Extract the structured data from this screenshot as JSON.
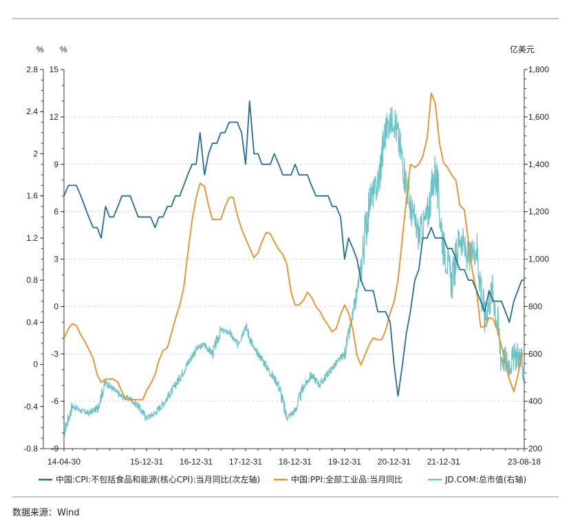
{
  "source_label": "数据来源：Wind",
  "chart_data": {
    "type": "line",
    "axes": {
      "left_outer": {
        "unit": "%",
        "min": -0.8,
        "max": 2.8,
        "ticks": [
          "2.8",
          "2.4",
          "2",
          "1.6",
          "1.2",
          "0.8",
          "0.4",
          "0",
          "-0.4",
          "-0.8"
        ]
      },
      "left_inner": {
        "unit": "%",
        "min": -9,
        "max": 15,
        "ticks": [
          "15",
          "12",
          "9",
          "6",
          "3",
          "0",
          "-3",
          "-6",
          "-9"
        ]
      },
      "right": {
        "unit": "亿美元",
        "min": 200,
        "max": 1800,
        "ticks": [
          "1,800",
          "1,600",
          "1,400",
          "1,200",
          "1,000",
          "800",
          "600",
          "400",
          "200"
        ]
      }
    },
    "x_ticks": [
      "14-04-30",
      "15-12-31",
      "16-12-31",
      "17-12-31",
      "18-12-31",
      "19-12-31",
      "20-12-31",
      "21-12-31",
      "23-08-18"
    ],
    "x_range_years": [
      2014.33,
      2023.63
    ],
    "x_tick_years": [
      2014.33,
      2016.0,
      2017.0,
      2018.0,
      2019.0,
      2020.0,
      2021.0,
      2022.0,
      2023.63
    ],
    "grid": "horizontal-dashed",
    "legend_position": "bottom",
    "colors": {
      "cpi": "#1f6e96",
      "ppi": "#f28a1f",
      "jd": "#6cc3c6"
    },
    "series": [
      {
        "name": "中国:CPI:不包括食品和能源(核心CPI):当月同比(次左轴)",
        "axis": "left_outer",
        "x": [
          2014.33,
          2014.42,
          2014.5,
          2014.58,
          2014.67,
          2014.75,
          2014.83,
          2014.92,
          2015.0,
          2015.08,
          2015.17,
          2015.25,
          2015.33,
          2015.42,
          2015.5,
          2015.58,
          2015.67,
          2015.75,
          2015.83,
          2015.92,
          2016.0,
          2016.08,
          2016.17,
          2016.25,
          2016.33,
          2016.42,
          2016.5,
          2016.58,
          2016.67,
          2016.75,
          2016.83,
          2016.92,
          2017.0,
          2017.08,
          2017.17,
          2017.25,
          2017.33,
          2017.42,
          2017.5,
          2017.58,
          2017.67,
          2017.75,
          2017.83,
          2017.92,
          2018.0,
          2018.08,
          2018.17,
          2018.25,
          2018.33,
          2018.42,
          2018.5,
          2018.58,
          2018.67,
          2018.75,
          2018.83,
          2018.92,
          2019.0,
          2019.08,
          2019.17,
          2019.25,
          2019.33,
          2019.42,
          2019.5,
          2019.58,
          2019.67,
          2019.75,
          2019.83,
          2019.92,
          2020.0,
          2020.08,
          2020.17,
          2020.25,
          2020.33,
          2020.42,
          2020.5,
          2020.58,
          2020.67,
          2020.75,
          2020.83,
          2020.92,
          2021.0,
          2021.08,
          2021.17,
          2021.25,
          2021.33,
          2021.42,
          2021.5,
          2021.58,
          2021.67,
          2021.75,
          2021.83,
          2021.92,
          2022.0,
          2022.08,
          2022.17,
          2022.25,
          2022.33,
          2022.42,
          2022.5,
          2022.58,
          2022.67,
          2022.75,
          2022.83,
          2022.92,
          2023.0,
          2023.08,
          2023.17,
          2023.25,
          2023.33,
          2023.42,
          2023.5,
          2023.58,
          2023.63
        ],
        "values": [
          1.6,
          1.7,
          1.7,
          1.7,
          1.6,
          1.5,
          1.4,
          1.3,
          1.3,
          1.2,
          1.5,
          1.4,
          1.4,
          1.5,
          1.6,
          1.6,
          1.6,
          1.5,
          1.4,
          1.4,
          1.4,
          1.4,
          1.3,
          1.4,
          1.4,
          1.5,
          1.5,
          1.6,
          1.6,
          1.7,
          1.8,
          1.9,
          1.9,
          2.2,
          1.8,
          2.0,
          2.1,
          2.1,
          2.2,
          2.2,
          2.3,
          2.3,
          2.3,
          2.2,
          1.9,
          2.5,
          2.0,
          2.0,
          1.9,
          1.9,
          1.9,
          2.0,
          1.9,
          1.8,
          1.8,
          1.8,
          1.9,
          1.8,
          1.8,
          1.8,
          1.7,
          1.6,
          1.6,
          1.6,
          1.6,
          1.5,
          1.5,
          1.4,
          1.0,
          1.2,
          1.1,
          1.0,
          0.8,
          0.7,
          0.7,
          0.7,
          0.5,
          0.5,
          0.5,
          0.4,
          0.0,
          -0.3,
          0.0,
          0.3,
          0.5,
          0.8,
          0.9,
          1.2,
          1.2,
          1.3,
          1.2,
          1.2,
          1.2,
          1.1,
          1.1,
          1.0,
          0.9,
          0.9,
          0.8,
          0.8,
          0.7,
          0.6,
          0.5,
          0.7,
          0.6,
          0.6,
          0.6,
          0.5,
          0.4,
          0.6,
          0.7,
          0.8,
          0.8
        ]
      },
      {
        "name": "中国:PPI:全部工业品:当月同比",
        "axis": "left_inner",
        "x": [
          2014.33,
          2014.42,
          2014.5,
          2014.58,
          2014.67,
          2014.75,
          2014.83,
          2014.92,
          2015.0,
          2015.08,
          2015.17,
          2015.25,
          2015.33,
          2015.42,
          2015.5,
          2015.58,
          2015.67,
          2015.75,
          2015.83,
          2015.92,
          2016.0,
          2016.08,
          2016.17,
          2016.25,
          2016.33,
          2016.42,
          2016.5,
          2016.58,
          2016.67,
          2016.75,
          2016.83,
          2016.92,
          2017.0,
          2017.08,
          2017.17,
          2017.25,
          2017.33,
          2017.42,
          2017.5,
          2017.58,
          2017.67,
          2017.75,
          2017.83,
          2017.92,
          2018.0,
          2018.08,
          2018.17,
          2018.25,
          2018.33,
          2018.42,
          2018.5,
          2018.58,
          2018.67,
          2018.75,
          2018.83,
          2018.92,
          2019.0,
          2019.08,
          2019.17,
          2019.25,
          2019.33,
          2019.42,
          2019.5,
          2019.58,
          2019.67,
          2019.75,
          2019.83,
          2019.92,
          2020.0,
          2020.08,
          2020.17,
          2020.25,
          2020.33,
          2020.42,
          2020.5,
          2020.58,
          2020.67,
          2020.75,
          2020.83,
          2020.92,
          2021.0,
          2021.08,
          2021.17,
          2021.25,
          2021.33,
          2021.42,
          2021.5,
          2021.58,
          2021.67,
          2021.75,
          2021.83,
          2021.92,
          2022.0,
          2022.08,
          2022.17,
          2022.25,
          2022.33,
          2022.42,
          2022.5,
          2022.58,
          2022.67,
          2022.75,
          2022.83,
          2022.92,
          2023.0,
          2023.08,
          2023.17,
          2023.25,
          2023.33,
          2023.42,
          2023.5,
          2023.58,
          2023.63
        ],
        "values": [
          -2.0,
          -1.4,
          -1.1,
          -1.2,
          -1.8,
          -2.2,
          -2.7,
          -3.3,
          -4.3,
          -4.8,
          -4.6,
          -4.6,
          -4.6,
          -4.8,
          -5.4,
          -5.9,
          -5.9,
          -5.9,
          -5.9,
          -5.9,
          -5.3,
          -4.9,
          -4.3,
          -3.4,
          -2.8,
          -2.6,
          -1.7,
          -0.8,
          0.1,
          1.2,
          3.3,
          5.5,
          6.9,
          7.8,
          7.6,
          6.4,
          5.5,
          5.5,
          5.5,
          6.3,
          6.9,
          6.9,
          5.8,
          4.9,
          4.3,
          3.7,
          3.1,
          3.4,
          4.1,
          4.7,
          4.6,
          4.1,
          3.6,
          3.3,
          2.7,
          0.9,
          0.1,
          0.1,
          0.4,
          0.9,
          0.6,
          0.0,
          -0.3,
          -0.8,
          -1.2,
          -1.6,
          -1.4,
          -0.5,
          0.1,
          -0.4,
          -1.5,
          -3.1,
          -3.7,
          -3.0,
          -2.4,
          -2.0,
          -2.1,
          -2.1,
          -1.5,
          -0.4,
          0.3,
          1.7,
          4.4,
          6.8,
          9.0,
          8.8,
          9.0,
          9.5,
          10.7,
          13.5,
          12.9,
          10.3,
          9.1,
          8.8,
          8.3,
          8.0,
          6.4,
          6.1,
          4.2,
          2.3,
          0.9,
          -1.3,
          -1.3,
          -0.7,
          -0.8,
          -1.4,
          -2.5,
          -3.6,
          -4.6,
          -5.4,
          -4.4,
          -3.0,
          -3.0
        ]
      },
      {
        "name": "JD.COM:总市值(右轴)",
        "axis": "right",
        "x": [
          2014.33,
          2014.5,
          2014.67,
          2014.83,
          2015.0,
          2015.17,
          2015.33,
          2015.5,
          2015.67,
          2015.83,
          2016.0,
          2016.17,
          2016.33,
          2016.5,
          2016.67,
          2016.83,
          2017.0,
          2017.17,
          2017.33,
          2017.5,
          2017.67,
          2017.83,
          2018.0,
          2018.17,
          2018.33,
          2018.5,
          2018.67,
          2018.83,
          2019.0,
          2019.17,
          2019.33,
          2019.5,
          2019.67,
          2019.83,
          2020.0,
          2020.17,
          2020.33,
          2020.5,
          2020.67,
          2020.83,
          2021.0,
          2021.17,
          2021.33,
          2021.5,
          2021.67,
          2021.83,
          2022.0,
          2022.17,
          2022.33,
          2022.5,
          2022.67,
          2022.83,
          2023.0,
          2023.17,
          2023.33,
          2023.5,
          2023.63
        ],
        "values": [
          270,
          380,
          360,
          350,
          370,
          480,
          450,
          420,
          410,
          380,
          330,
          350,
          390,
          440,
          500,
          560,
          620,
          640,
          600,
          700,
          690,
          640,
          720,
          620,
          580,
          520,
          470,
          330,
          360,
          460,
          510,
          470,
          520,
          560,
          600,
          760,
          960,
          1250,
          1310,
          1550,
          1600,
          1420,
          1220,
          1100,
          1180,
          1380,
          1060,
          900,
          1100,
          1000,
          1050,
          750,
          880,
          590,
          560,
          600,
          530
        ]
      }
    ],
    "legend": [
      "中国:CPI:不包括食品和能源(核心CPI):当月同比(次左轴)",
      "中国:PPI:全部工业品:当月同比",
      "JD.COM:总市值(右轴)"
    ]
  }
}
